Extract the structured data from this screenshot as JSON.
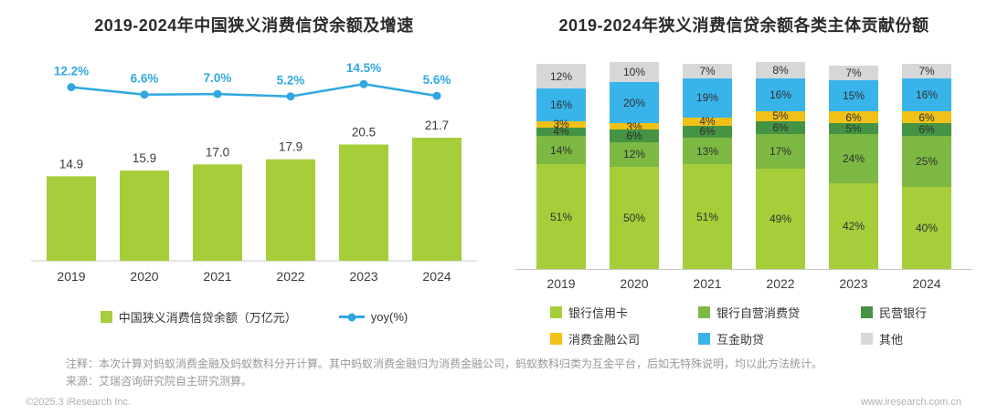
{
  "chart_data": [
    {
      "type": "bar",
      "subtype": "bar+line-combo",
      "title": "2019-2024年中国狭义消费信贷余额及增速",
      "categories": [
        "2019",
        "2020",
        "2021",
        "2022",
        "2023",
        "2024"
      ],
      "xlabel": "",
      "ylabel": "",
      "ylim_bar": [
        0,
        25
      ],
      "ylim_line": [
        0,
        16
      ],
      "legend_position": "bottom",
      "grid": false,
      "series": [
        {
          "name": "中国狭义消费信贷余额（万亿元）",
          "render": "bar",
          "color": "#a5ce3a",
          "values": [
            14.9,
            15.9,
            17.0,
            17.9,
            20.5,
            21.7
          ],
          "labels": [
            "14.9",
            "15.9",
            "17.0",
            "17.9",
            "20.5",
            "21.7"
          ]
        },
        {
          "name": "yoy(%)",
          "render": "line",
          "color": "#2fa8e1",
          "values": [
            12.2,
            6.6,
            7.0,
            5.2,
            14.5,
            5.6
          ],
          "labels": [
            "12.2%",
            "6.6%",
            "7.0%",
            "5.2%",
            "14.5%",
            "5.6%"
          ]
        }
      ]
    },
    {
      "type": "bar",
      "subtype": "stacked-100pct",
      "title": "2019-2024年狭义消费信贷余额各类主体贡献份额",
      "categories": [
        "2019",
        "2020",
        "2021",
        "2022",
        "2023",
        "2024"
      ],
      "xlabel": "",
      "ylabel": "",
      "ylim": [
        0,
        100
      ],
      "unit": "%",
      "legend_position": "bottom",
      "grid": false,
      "series": [
        {
          "name": "银行信用卡",
          "color": "#a5ce3a",
          "values": [
            51,
            50,
            51,
            49,
            42,
            40
          ]
        },
        {
          "name": "银行自营消费贷",
          "color": "#7db843",
          "values": [
            14,
            12,
            13,
            17,
            24,
            25
          ]
        },
        {
          "name": "民营银行",
          "color": "#459443",
          "values": [
            4,
            6,
            6,
            6,
            5,
            6
          ]
        },
        {
          "name": "消费金融公司",
          "color": "#f0c117",
          "values": [
            3,
            3,
            4,
            5,
            6,
            6
          ]
        },
        {
          "name": "互金助贷",
          "color": "#38b4ea",
          "values": [
            16,
            20,
            19,
            16,
            15,
            16
          ]
        },
        {
          "name": "其他",
          "color": "#d7d7d7",
          "values": [
            12,
            10,
            7,
            8,
            7,
            7
          ]
        }
      ]
    }
  ],
  "footer": {
    "note1": "注释：本次计算对蚂蚁消费金融及蚂蚁数科分开计算。其中蚂蚁消费金融归为消费金融公司，蚂蚁数科归类为互金平台，后如无特殊说明，均以此方法统计。",
    "note2": "来源：艾瑞咨询研究院自主研究测算。",
    "copyright": "©2025.3 iResearch Inc.",
    "website": "www.iresearch.com.cn"
  }
}
